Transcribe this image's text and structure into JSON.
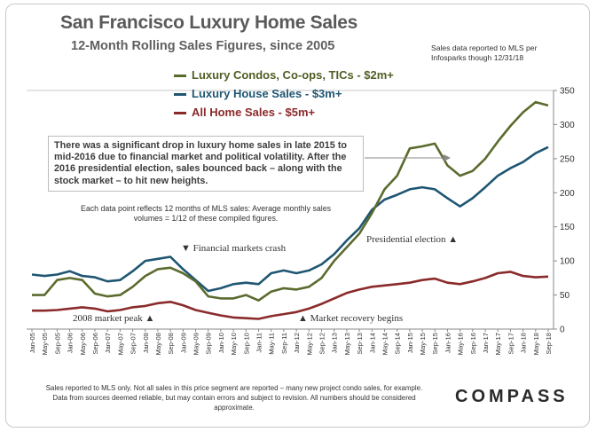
{
  "header": {
    "title": "San Francisco Luxury Home Sales",
    "subtitle": "12-Month Rolling Sales Figures, since 2005",
    "source_note": "Sales data reported to MLS per Infosparks though 12/31/18"
  },
  "legend": [
    {
      "label": "Luxury Condos, Co-ops, TICs - $2m+",
      "color": "#5b6b2e"
    },
    {
      "label": "Luxury House Sales - $3m+",
      "color": "#1f5672"
    },
    {
      "label": "All Home Sales - $5m+",
      "color": "#8b2a2a"
    }
  ],
  "annotations": {
    "box_text": "There was a significant drop in luxury home sales in late 2015 to mid-2016 due to financial market and political volatility. After the 2016 presidential election, sales bounced back – along with the stock market – to hit new heights.",
    "data_note": "Each data point reflects 12 months of MLS sales: Average monthly sales volumes = 1/12 of these compiled figures.",
    "financial_crash": "▼ Financial markets crash",
    "market_peak": "2008 market peak ▲",
    "market_recovery": "▲ Market recovery begins",
    "presidential_election": "Presidential election ▲"
  },
  "footnote": "Sales reported to MLS only. Not all sales in this price segment are reported – many new project condo sales, for example. Data from sources deemed reliable, but may contain errors and subject to revision. All numbers should be considered approximate.",
  "brand": "COMPASS",
  "chart_data": {
    "type": "line",
    "title": "San Francisco Luxury Home Sales",
    "ylim": [
      0,
      350
    ],
    "yticks": [
      0,
      50,
      100,
      150,
      200,
      250,
      300,
      350
    ],
    "y_axis_side": "right",
    "grid": false,
    "tick_labels": [
      "Jan-05",
      "May-05",
      "Sep-05",
      "Jan-06",
      "May-06",
      "Sep-06",
      "Jan-07",
      "May-07",
      "Sep-07",
      "Jan-08",
      "May-08",
      "Sep-08",
      "Jan-09",
      "May-09",
      "Sep-09",
      "Jan-10",
      "May-10",
      "Sep-10",
      "Jan-11",
      "May-11",
      "Sep-11",
      "Jan-12",
      "May-12",
      "Sep-12",
      "Jan-13",
      "May-13",
      "Sep-13",
      "Jan-14",
      "May-14",
      "Sep-14",
      "Jan-15",
      "May-15",
      "Sep-15",
      "Jan-16",
      "May-16",
      "Sep-16",
      "Jan-17",
      "May-17",
      "Sep-17",
      "Jan-18",
      "May-18",
      "Sep-18"
    ],
    "series": [
      {
        "name": "Luxury Condos, Co-ops, TICs - $2m+",
        "color": "#5b6b2e",
        "values": [
          50,
          50,
          72,
          75,
          72,
          52,
          48,
          50,
          62,
          78,
          88,
          90,
          82,
          70,
          48,
          45,
          45,
          50,
          42,
          55,
          60,
          58,
          62,
          75,
          100,
          120,
          140,
          170,
          205,
          225,
          265,
          268,
          272,
          240,
          225,
          232,
          250,
          275,
          298,
          318,
          333,
          328
        ]
      },
      {
        "name": "Luxury House Sales - $3m+",
        "color": "#1f5672",
        "values": [
          80,
          78,
          80,
          85,
          78,
          76,
          70,
          72,
          85,
          100,
          103,
          106,
          88,
          72,
          56,
          60,
          66,
          68,
          66,
          82,
          86,
          82,
          86,
          95,
          110,
          130,
          148,
          175,
          190,
          197,
          205,
          208,
          205,
          192,
          180,
          192,
          208,
          225,
          236,
          245,
          258,
          267
        ]
      },
      {
        "name": "All Home Sales - $5m+",
        "color": "#8b2a2a",
        "values": [
          27,
          27,
          28,
          30,
          32,
          30,
          26,
          28,
          32,
          34,
          38,
          40,
          35,
          28,
          24,
          20,
          17,
          16,
          15,
          19,
          22,
          25,
          30,
          37,
          45,
          53,
          58,
          62,
          64,
          66,
          68,
          72,
          74,
          68,
          66,
          70,
          75,
          82,
          84,
          78,
          76,
          77
        ]
      }
    ]
  }
}
